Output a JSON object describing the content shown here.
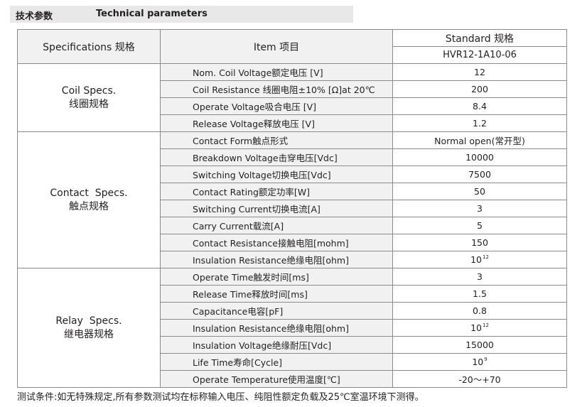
{
  "header": {
    "title_cn": "技术参数",
    "title_en": "Technical parameters"
  },
  "table": {
    "col_spec": "Specifications 规格",
    "col_item": "Item 项目",
    "col_standard": "Standard 规格",
    "model": "HVR12-1A10-06",
    "groups": [
      {
        "name_en": "Coil Specs.",
        "name_cn": "线圈规格",
        "rows": [
          {
            "item": "Nom. Coil Voltage额定电压 [V]",
            "value": "12"
          },
          {
            "item": "Coil Resistance 线圈电阻±10% [Ω]at 20℃",
            "value": "200"
          },
          {
            "item": "Operate Voltage吸合电压 [V]",
            "value": "8.4"
          },
          {
            "item": "Release Voltage释放电压 [V]",
            "value": "1.2"
          }
        ]
      },
      {
        "name_en": "Contact  Specs.",
        "name_cn": "触点规格",
        "rows": [
          {
            "item": "Contact Form触点形式",
            "value": "Normal open(常开型)"
          },
          {
            "item": "Breakdown Voltage击穿电压[Vdc]",
            "value": "10000"
          },
          {
            "item": "Switching Voltage切换电压[Vdc]",
            "value": "7500"
          },
          {
            "item": "Contact Rating额定功率[W]",
            "value": "50"
          },
          {
            "item": "Switching Current切换电流[A]",
            "value": "3"
          },
          {
            "item": "Carry Current载流[A]",
            "value": "5"
          },
          {
            "item": "Contact Resistance接触电阻[mohm]",
            "value": "150"
          },
          {
            "item": "Insulation Resistance绝缘电阻[ohm]",
            "value": "10",
            "exp": "12"
          }
        ]
      },
      {
        "name_en": "Relay  Specs.",
        "name_cn": "继电器规格",
        "rows": [
          {
            "item": "Operate Time触发时间[ms]",
            "value": "3"
          },
          {
            "item": "Release Time释放时间[ms]",
            "value": "1.5"
          },
          {
            "item": "Capacitance电容[pF]",
            "value": "0.8"
          },
          {
            "item": "Insulation Resistance绝缘电阻[ohm]",
            "value": "10",
            "exp": "12"
          },
          {
            "item": "Insulation Voltage绝缘耐压[Vdc]",
            "value": "15000"
          },
          {
            "item": "Life Time寿命[Cycle]",
            "value": "10",
            "exp": "9"
          },
          {
            "item": "Operate Temperature使用温度[℃]",
            "value": "-20～+70"
          }
        ]
      }
    ]
  },
  "note": "测试条件:如无特殊规定,所有参数测试均在标称输入电压、纯阻性额定负载及25℃室温环境下测得。"
}
